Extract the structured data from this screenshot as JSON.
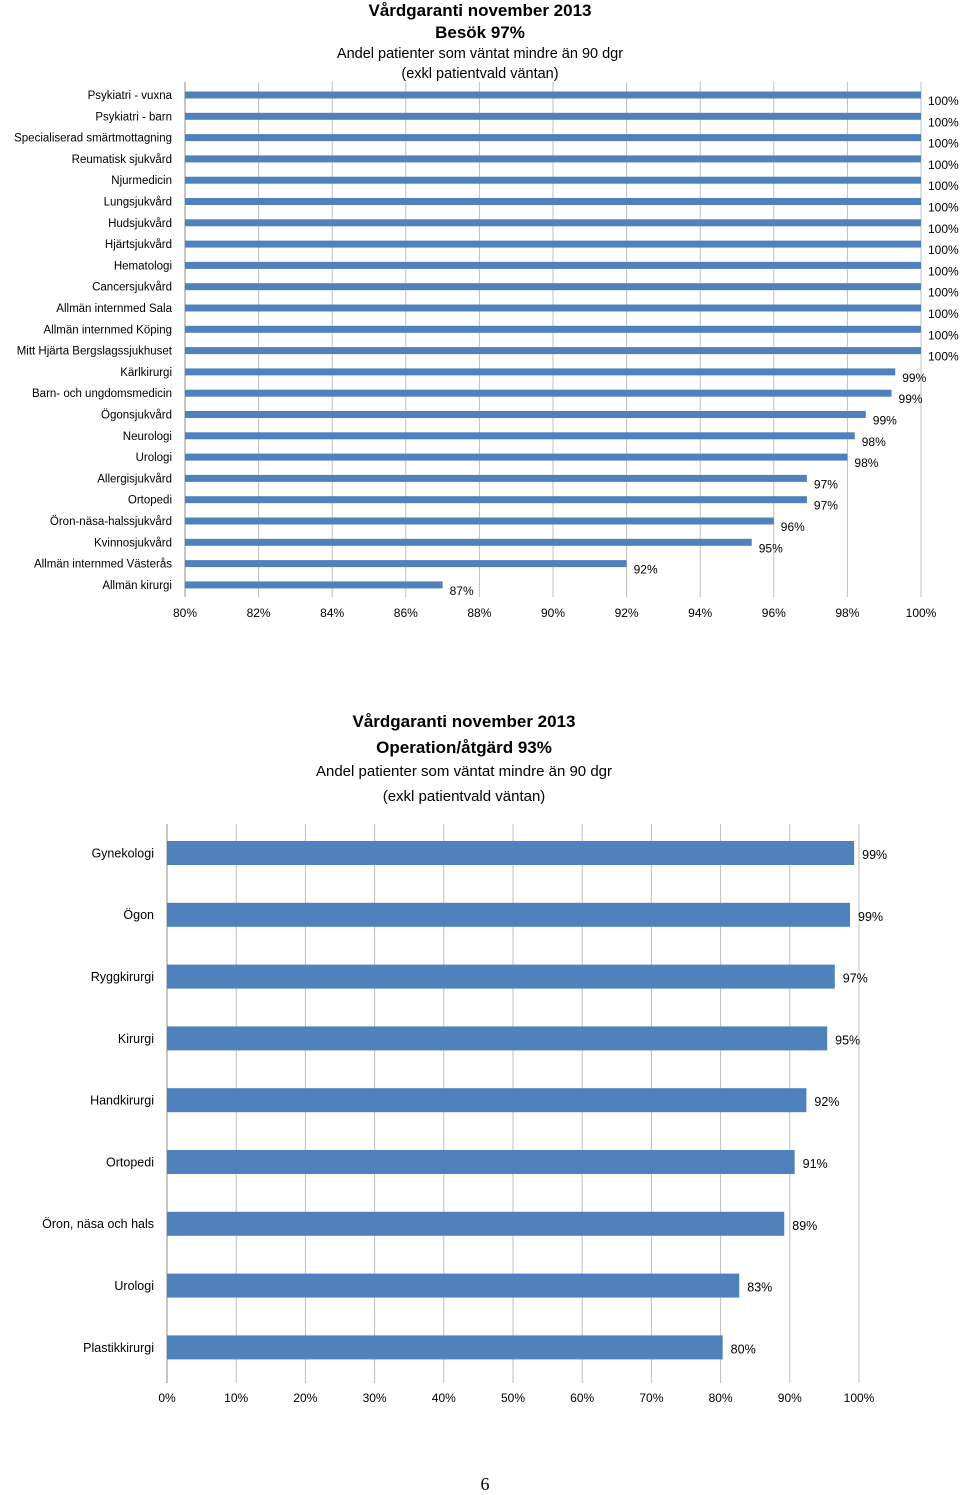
{
  "chart_data": [
    {
      "type": "bar",
      "orientation": "horizontal",
      "title": "Vårdgaranti november 2013",
      "subtitle": "Besök 97%",
      "subtitle2": "Andel patienter som väntat mindre än 90 dgr",
      "subtitle3": "(exkl patientvald väntan)",
      "categories": [
        "Psykiatri - vuxna",
        "Psykiatri - barn",
        "Specialiserad smärtmottagning",
        "Reumatisk sjukvård",
        "Njurmedicin",
        "Lungsjukvård",
        "Hudsjukvård",
        "Hjärtsjukvård",
        "Hematologi",
        "Cancersjukvård",
        "Allmän internmed Sala",
        "Allmän internmed Köping",
        "Mitt Hjärta Bergslagssjukhuset",
        "Kärlkirurgi",
        "Barn- och ungdomsmedicin",
        "Ögonsjukvård",
        "Neurologi",
        "Urologi",
        "Allergisjukvård",
        "Ortopedi",
        "Öron-näsa-halssjukvård",
        "Kvinnosjukvård",
        "Allmän internmed Västerås",
        "Allmän kirurgi"
      ],
      "values": [
        100,
        100,
        100,
        100,
        100,
        100,
        100,
        100,
        100,
        100,
        100,
        100,
        100,
        99.3,
        99.2,
        98.5,
        98.2,
        98.0,
        96.9,
        96.9,
        96.0,
        95.4,
        92.0,
        87.0
      ],
      "data_labels": [
        "100%",
        "100%",
        "100%",
        "100%",
        "100%",
        "100%",
        "100%",
        "100%",
        "100%",
        "100%",
        "100%",
        "100%",
        "100%",
        "99%",
        "99%",
        "99%",
        "98%",
        "98%",
        "97%",
        "97%",
        "96%",
        "95%",
        "92%",
        "87%"
      ],
      "xlim": [
        80,
        100
      ],
      "xticks": [
        80,
        82,
        84,
        86,
        88,
        90,
        92,
        94,
        96,
        98,
        100
      ],
      "xtick_labels": [
        "80%",
        "82%",
        "84%",
        "86%",
        "88%",
        "90%",
        "92%",
        "94%",
        "96%",
        "98%",
        "100%"
      ],
      "grid": "vertical",
      "bar_color": "#4f81bd"
    },
    {
      "type": "bar",
      "orientation": "horizontal",
      "title": "Vårdgaranti november 2013",
      "subtitle": "Operation/åtgärd 93%",
      "subtitle2": "Andel patienter som väntat mindre än 90 dgr",
      "subtitle3": "(exkl patientvald väntan)",
      "categories": [
        "Gynekologi",
        "Ögon",
        "Ryggkirurgi",
        "Kirurgi",
        "Handkirurgi",
        "Ortopedi",
        "Öron, näsa och hals",
        "Urologi",
        "Plastikkirurgi"
      ],
      "values": [
        99.3,
        98.7,
        96.5,
        95.4,
        92.4,
        90.7,
        89.2,
        82.7,
        80.3
      ],
      "data_labels": [
        "99%",
        "99%",
        "97%",
        "95%",
        "92%",
        "91%",
        "89%",
        "83%",
        "80%"
      ],
      "xlim": [
        0,
        100
      ],
      "xticks": [
        0,
        10,
        20,
        30,
        40,
        50,
        60,
        70,
        80,
        90,
        100
      ],
      "xtick_labels": [
        "0%",
        "10%",
        "20%",
        "30%",
        "40%",
        "50%",
        "60%",
        "70%",
        "80%",
        "90%",
        "100%"
      ],
      "grid": "vertical",
      "bar_color": "#4f81bd"
    }
  ],
  "page_number": "6"
}
